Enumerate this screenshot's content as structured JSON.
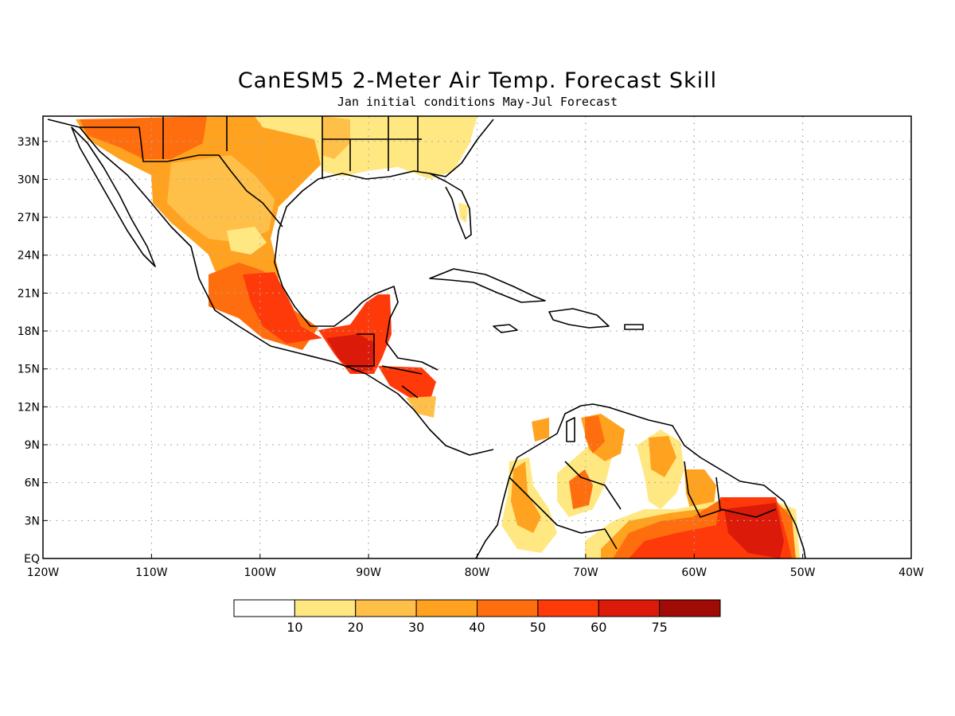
{
  "title": "CanESM5 2-Meter Air Temp. Forecast Skill",
  "subtitle": "Jan initial conditions   May-Jul Forecast",
  "map": {
    "lon_range": [
      -120,
      -40
    ],
    "lat_range": [
      0,
      35
    ],
    "lat_ticks": [
      {
        "value": 33,
        "label": "33N"
      },
      {
        "value": 30,
        "label": "30N"
      },
      {
        "value": 27,
        "label": "27N"
      },
      {
        "value": 24,
        "label": "24N"
      },
      {
        "value": 21,
        "label": "21N"
      },
      {
        "value": 18,
        "label": "18N"
      },
      {
        "value": 15,
        "label": "15N"
      },
      {
        "value": 12,
        "label": "12N"
      },
      {
        "value": 9,
        "label": "9N"
      },
      {
        "value": 6,
        "label": "6N"
      },
      {
        "value": 3,
        "label": "3N"
      },
      {
        "value": 0,
        "label": "EQ"
      }
    ],
    "lon_ticks": [
      {
        "value": -120,
        "label": "120W"
      },
      {
        "value": -110,
        "label": "110W"
      },
      {
        "value": -100,
        "label": "100W"
      },
      {
        "value": -90,
        "label": "90W"
      },
      {
        "value": -80,
        "label": "80W"
      },
      {
        "value": -70,
        "label": "70W"
      },
      {
        "value": -60,
        "label": "60W"
      },
      {
        "value": -50,
        "label": "50W"
      },
      {
        "value": -40,
        "label": "40W"
      }
    ],
    "grid": true
  },
  "colorbar": {
    "labels": [
      "10",
      "20",
      "30",
      "40",
      "50",
      "60",
      "75"
    ],
    "colors": [
      "#ffffff",
      "#ffe882",
      "#ffc04a",
      "#ffa21f",
      "#ff6e0e",
      "#ff3a0a",
      "#dc1a0a",
      "#a00b05"
    ]
  },
  "chart_data": {
    "type": "heatmap",
    "title": "CanESM5 2-Meter Air Temp. Forecast Skill",
    "subtitle": "Jan initial conditions   May-Jul Forecast",
    "xlabel": "",
    "ylabel": "",
    "xlim": [
      -120,
      -40
    ],
    "ylim": [
      0,
      35
    ],
    "legend": "colorbar-bottom",
    "levels": [
      10,
      20,
      30,
      40,
      50,
      60,
      75
    ],
    "regions": [
      {
        "lon": [
          -120,
          -102
        ],
        "lat": [
          29,
          35
        ],
        "level": 40
      },
      {
        "lon": [
          -118,
          -108
        ],
        "lat": [
          31.5,
          35
        ],
        "level": 50
      },
      {
        "lon": [
          -97,
          -84
        ],
        "lat": [
          30,
          35
        ],
        "level": 10
      },
      {
        "lon": [
          -112,
          -96
        ],
        "lat": [
          20,
          32
        ],
        "level": 30
      },
      {
        "lon": [
          -106,
          -98
        ],
        "lat": [
          22,
          30
        ],
        "level": 40
      },
      {
        "lon": [
          -102,
          -96
        ],
        "lat": [
          17,
          22
        ],
        "level": 50
      },
      {
        "lon": [
          -92,
          -88
        ],
        "lat": [
          15,
          18
        ],
        "level": 60
      },
      {
        "lon": [
          -89,
          -85
        ],
        "lat": [
          13,
          15
        ],
        "level": 50
      },
      {
        "lon": [
          -74,
          -67
        ],
        "lat": [
          1,
          11
        ],
        "level": 20
      },
      {
        "lon": [
          -73,
          -71
        ],
        "lat": [
          4,
          7
        ],
        "level": 50
      },
      {
        "lon": [
          -70,
          -66
        ],
        "lat": [
          0,
          3
        ],
        "level": 30
      },
      {
        "lon": [
          -66,
          -50
        ],
        "lat": [
          0,
          3
        ],
        "level": 50
      },
      {
        "lon": [
          -59,
          -52
        ],
        "lat": [
          1,
          5
        ],
        "level": 60
      },
      {
        "lon": [
          -64,
          -60
        ],
        "lat": [
          4,
          10
        ],
        "level": 30
      }
    ]
  }
}
